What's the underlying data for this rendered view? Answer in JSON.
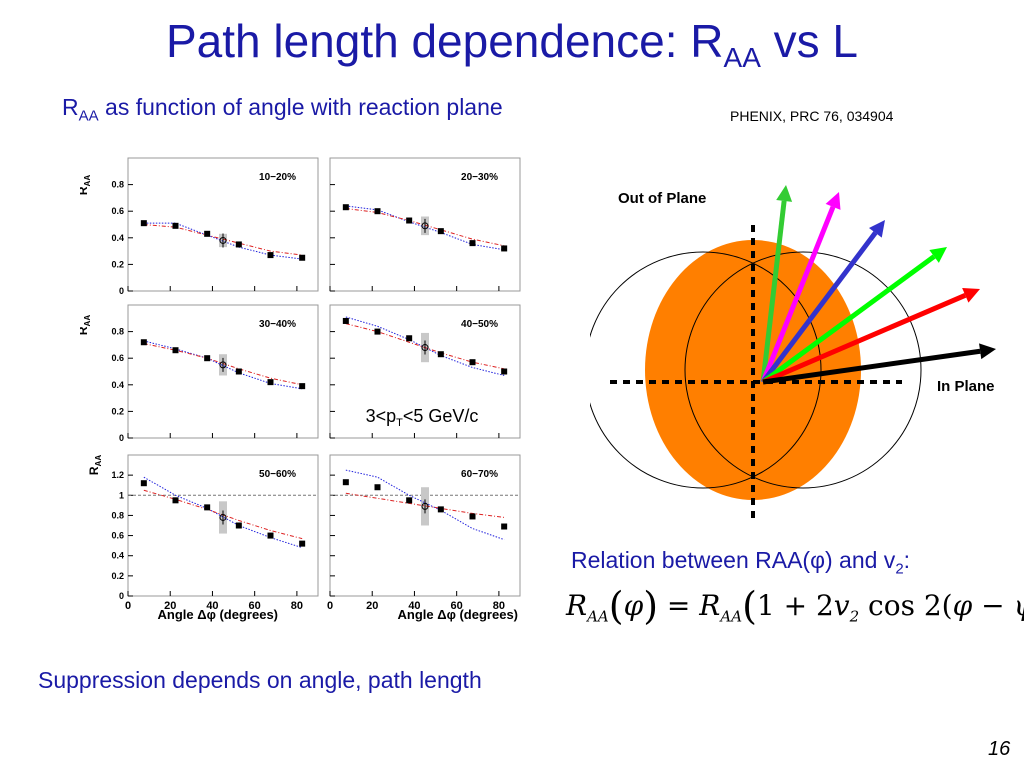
{
  "slide": {
    "title_main": "Path length dependence: R",
    "title_sub": "AA",
    "title_tail": " vs L",
    "subtitle_main": "R",
    "subtitle_sub": "AA",
    "subtitle_tail": " as function of angle with reaction plane",
    "reference": "PHENIX, PRC 76, 034904",
    "relation_main": "Relation between RAA(φ) and v",
    "relation_sub": "2",
    "relation_tail": ":",
    "conclusion": "Suppression depends on angle, path length",
    "page_number": "16",
    "formula": {
      "lhs": "R",
      "lhs_sub": "AA",
      "phi": "φ",
      "eq": " = ",
      "rhs": "R",
      "rhs_sub": "AA",
      "body_a": "1 + 2",
      "v": "v",
      "v_sub": "2",
      "body_b": " cos 2(",
      "body_c": "φ",
      "body_d": " − ",
      "body_e": "ψ",
      "body_f": ")"
    },
    "pt_label": {
      "pre": "3<p",
      "sub": "T",
      "post": "<5 GeV/c"
    }
  },
  "diagram": {
    "out_of_plane_label": "Out of Plane",
    "in_plane_label": "In Plane",
    "arrow_colors": [
      "#33cc33",
      "#ff00ff",
      "#3333cc",
      "#00ff00",
      "#ff0000",
      "#000000"
    ],
    "ellipse_color": "#ff7f00"
  },
  "chart_data": {
    "type": "scatter",
    "xlabel": "Angle Δφ (degrees)",
    "ylabel": "R_AA",
    "x_ticks": [
      0,
      20,
      40,
      60,
      80
    ],
    "xlim": [
      0,
      90
    ],
    "panels": [
      {
        "label": "10−20%",
        "ylim": [
          0,
          1.0
        ],
        "y_ticks": [
          0,
          0.2,
          0.4,
          0.6,
          0.8
        ],
        "x": [
          7.5,
          22.5,
          37.5,
          52.5,
          67.5,
          82.5
        ],
        "y": [
          0.51,
          0.49,
          0.43,
          0.35,
          0.27,
          0.25
        ],
        "open_point": {
          "x": 45,
          "y": 0.38,
          "band": [
            0.33,
            0.43
          ]
        },
        "blue_curve": [
          0.51,
          0.51,
          0.42,
          0.33,
          0.27,
          0.24
        ],
        "red_curve": [
          0.5,
          0.48,
          0.42,
          0.36,
          0.3,
          0.27
        ]
      },
      {
        "label": "20−30%",
        "ylim": [
          0,
          1.0
        ],
        "y_ticks": [
          0,
          0.2,
          0.4,
          0.6,
          0.8
        ],
        "x": [
          7.5,
          22.5,
          37.5,
          52.5,
          67.5,
          82.5
        ],
        "y": [
          0.63,
          0.6,
          0.53,
          0.45,
          0.36,
          0.32
        ],
        "open_point": {
          "x": 45,
          "y": 0.49,
          "band": [
            0.42,
            0.56
          ]
        },
        "blue_curve": [
          0.64,
          0.61,
          0.52,
          0.44,
          0.35,
          0.31
        ],
        "red_curve": [
          0.62,
          0.59,
          0.53,
          0.46,
          0.39,
          0.34
        ]
      },
      {
        "label": "30−40%",
        "ylim": [
          0,
          1.0
        ],
        "y_ticks": [
          0,
          0.2,
          0.4,
          0.6,
          0.8
        ],
        "x": [
          7.5,
          22.5,
          37.5,
          52.5,
          67.5,
          82.5
        ],
        "y": [
          0.72,
          0.66,
          0.6,
          0.5,
          0.42,
          0.39
        ],
        "open_point": {
          "x": 45,
          "y": 0.55,
          "band": [
            0.47,
            0.63
          ]
        },
        "blue_curve": [
          0.73,
          0.67,
          0.6,
          0.49,
          0.41,
          0.37
        ],
        "red_curve": [
          0.71,
          0.66,
          0.6,
          0.52,
          0.45,
          0.4
        ]
      },
      {
        "label": "40−50%",
        "ylim": [
          0,
          1.0
        ],
        "y_ticks": [
          0,
          0.2,
          0.4,
          0.6,
          0.8
        ],
        "x": [
          7.5,
          22.5,
          37.5,
          52.5,
          67.5,
          82.5
        ],
        "y": [
          0.88,
          0.8,
          0.75,
          0.63,
          0.57,
          0.5
        ],
        "open_point": {
          "x": 45,
          "y": 0.68,
          "band": [
            0.57,
            0.79
          ]
        },
        "blue_curve": [
          0.91,
          0.84,
          0.74,
          0.62,
          0.53,
          0.47
        ],
        "red_curve": [
          0.86,
          0.8,
          0.72,
          0.64,
          0.57,
          0.52
        ]
      },
      {
        "label": "50−60%",
        "ylim": [
          0,
          1.4
        ],
        "y_ticks": [
          0,
          0.2,
          0.4,
          0.6,
          0.8,
          1,
          1.2
        ],
        "ref_line": 1,
        "x": [
          7.5,
          22.5,
          37.5,
          52.5,
          67.5,
          82.5
        ],
        "y": [
          1.12,
          0.95,
          0.88,
          0.7,
          0.6,
          0.52
        ],
        "open_point": {
          "x": 45,
          "y": 0.78,
          "band": [
            0.62,
            0.94
          ]
        },
        "blue_curve": [
          1.18,
          1.0,
          0.87,
          0.7,
          0.58,
          0.48
        ],
        "red_curve": [
          1.05,
          0.96,
          0.86,
          0.75,
          0.65,
          0.57
        ]
      },
      {
        "label": "60−70%",
        "ylim": [
          0,
          1.4
        ],
        "y_ticks": [
          0,
          0.2,
          0.4,
          0.6,
          0.8,
          1,
          1.2
        ],
        "ref_line": 1,
        "x": [
          7.5,
          22.5,
          37.5,
          52.5,
          67.5,
          82.5
        ],
        "y": [
          1.13,
          1.08,
          0.95,
          0.86,
          0.79,
          0.69
        ],
        "open_point": {
          "x": 45,
          "y": 0.89,
          "band": [
            0.7,
            1.08
          ]
        },
        "blue_curve": [
          1.25,
          1.18,
          1.0,
          0.85,
          0.67,
          0.56
        ],
        "red_curve": [
          1.02,
          0.97,
          0.92,
          0.87,
          0.82,
          0.78
        ]
      }
    ]
  }
}
